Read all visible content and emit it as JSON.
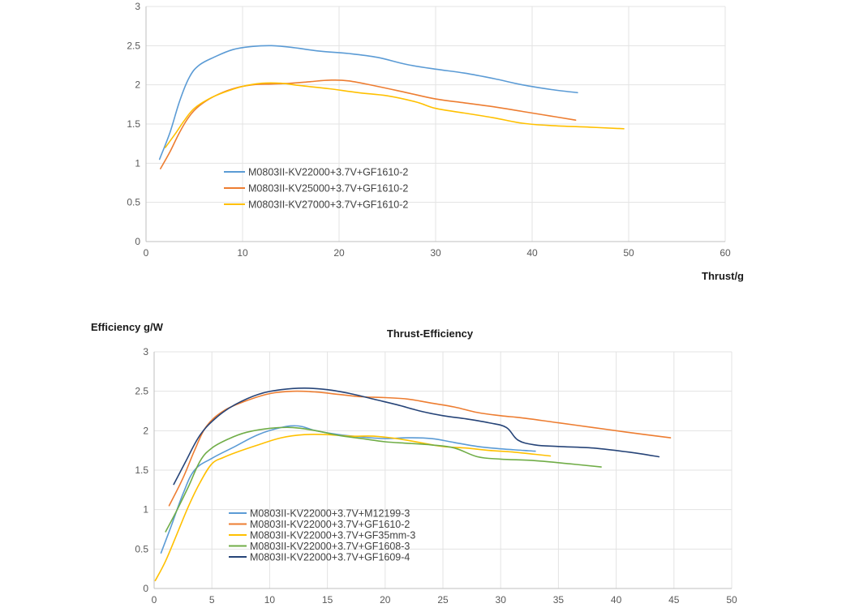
{
  "chart_data": [
    {
      "type": "line",
      "title": "",
      "xlabel": "Thrust/g",
      "ylabel": "",
      "xlim": [
        0,
        60
      ],
      "ylim": [
        0,
        3
      ],
      "xticks": [
        "0",
        "10",
        "20",
        "30",
        "40",
        "50",
        "60"
      ],
      "yticks": [
        "0",
        "0.5",
        "1",
        "1.5",
        "2",
        "2.5",
        "3"
      ],
      "grid": true,
      "legend_position": "left-center",
      "series": [
        {
          "name": "M0803II-KV22000+3.7V+GF1610-2",
          "color": "#5B9BD5",
          "points": [
            [
              1.4,
              1.05
            ],
            [
              2.5,
              1.4
            ],
            [
              3.5,
              1.8
            ],
            [
              4.5,
              2.1
            ],
            [
              5.5,
              2.25
            ],
            [
              7,
              2.35
            ],
            [
              9,
              2.45
            ],
            [
              11,
              2.49
            ],
            [
              13,
              2.5
            ],
            [
              15,
              2.48
            ],
            [
              18,
              2.43
            ],
            [
              21,
              2.4
            ],
            [
              24,
              2.35
            ],
            [
              27,
              2.26
            ],
            [
              30,
              2.2
            ],
            [
              33,
              2.15
            ],
            [
              36,
              2.08
            ],
            [
              39,
              2.0
            ],
            [
              42,
              1.94
            ],
            [
              44.7,
              1.9
            ]
          ]
        },
        {
          "name": "M0803II-KV25000+3.7V+GF1610-2",
          "color": "#ED7D31",
          "points": [
            [
              1.5,
              0.93
            ],
            [
              2.5,
              1.15
            ],
            [
              3.5,
              1.4
            ],
            [
              4.5,
              1.6
            ],
            [
              5.5,
              1.73
            ],
            [
              7,
              1.85
            ],
            [
              9,
              1.95
            ],
            [
              11,
              2.0
            ],
            [
              13,
              2.01
            ],
            [
              15,
              2.02
            ],
            [
              17,
              2.04
            ],
            [
              19,
              2.06
            ],
            [
              21,
              2.05
            ],
            [
              24,
              1.98
            ],
            [
              27,
              1.9
            ],
            [
              30,
              1.82
            ],
            [
              33,
              1.77
            ],
            [
              36,
              1.72
            ],
            [
              39,
              1.66
            ],
            [
              42,
              1.6
            ],
            [
              44.5,
              1.55
            ]
          ]
        },
        {
          "name": "M0803II-KV27000+3.7V+GF1610-2",
          "color": "#FFC000",
          "points": [
            [
              2,
              1.2
            ],
            [
              3,
              1.37
            ],
            [
              4,
              1.55
            ],
            [
              5,
              1.7
            ],
            [
              6.5,
              1.82
            ],
            [
              8,
              1.9
            ],
            [
              10,
              1.98
            ],
            [
              12,
              2.02
            ],
            [
              14,
              2.02
            ],
            [
              16,
              1.99
            ],
            [
              19,
              1.95
            ],
            [
              22,
              1.9
            ],
            [
              25,
              1.86
            ],
            [
              28,
              1.78
            ],
            [
              30,
              1.7
            ],
            [
              33,
              1.64
            ],
            [
              36,
              1.58
            ],
            [
              39,
              1.51
            ],
            [
              42,
              1.48
            ],
            [
              46,
              1.46
            ],
            [
              49.5,
              1.44
            ]
          ]
        }
      ]
    },
    {
      "type": "line",
      "title": "Thrust-Efficiency",
      "xlabel": "",
      "ylabel": "Efficiency g/W",
      "xlim": [
        0,
        50
      ],
      "ylim": [
        0,
        3
      ],
      "xticks": [
        "0",
        "5",
        "10",
        "15",
        "20",
        "25",
        "30",
        "35",
        "40",
        "45",
        "50"
      ],
      "yticks": [
        "0",
        "0.5",
        "1",
        "1.5",
        "2",
        "2.5",
        "3"
      ],
      "grid": true,
      "legend_position": "left-bottom",
      "series": [
        {
          "name": "M0803II-KV22000+3.7V+M12199-3",
          "color": "#5B9BD5",
          "points": [
            [
              0.6,
              0.45
            ],
            [
              1.5,
              0.8
            ],
            [
              2.5,
              1.2
            ],
            [
              3.5,
              1.5
            ],
            [
              5,
              1.65
            ],
            [
              7,
              1.8
            ],
            [
              9,
              1.95
            ],
            [
              11,
              2.04
            ],
            [
              12.5,
              2.06
            ],
            [
              14,
              2.0
            ],
            [
              16,
              1.95
            ],
            [
              18,
              1.92
            ],
            [
              20,
              1.9
            ],
            [
              22,
              1.91
            ],
            [
              24,
              1.9
            ],
            [
              26,
              1.85
            ],
            [
              28,
              1.8
            ],
            [
              30,
              1.77
            ],
            [
              32,
              1.75
            ],
            [
              33,
              1.74
            ]
          ]
        },
        {
          "name": "M0803II-KV22000+3.7V+GF1610-2",
          "color": "#ED7D31",
          "points": [
            [
              1.3,
              1.05
            ],
            [
              2.5,
              1.4
            ],
            [
              3.5,
              1.75
            ],
            [
              4.5,
              2.05
            ],
            [
              6,
              2.25
            ],
            [
              8,
              2.38
            ],
            [
              10,
              2.47
            ],
            [
              12,
              2.5
            ],
            [
              14,
              2.49
            ],
            [
              16,
              2.46
            ],
            [
              18,
              2.43
            ],
            [
              20,
              2.42
            ],
            [
              22,
              2.4
            ],
            [
              24,
              2.35
            ],
            [
              26,
              2.3
            ],
            [
              28,
              2.23
            ],
            [
              30,
              2.19
            ],
            [
              32,
              2.16
            ],
            [
              35,
              2.1
            ],
            [
              38,
              2.04
            ],
            [
              41,
              1.98
            ],
            [
              44.7,
              1.91
            ]
          ]
        },
        {
          "name": "M0803II-KV22000+3.7V+GF35mm-3",
          "color": "#FFC000",
          "points": [
            [
              0.1,
              0.1
            ],
            [
              1,
              0.35
            ],
            [
              2,
              0.7
            ],
            [
              3,
              1.05
            ],
            [
              4,
              1.35
            ],
            [
              5,
              1.58
            ],
            [
              6,
              1.66
            ],
            [
              7,
              1.72
            ],
            [
              9,
              1.82
            ],
            [
              11,
              1.91
            ],
            [
              13,
              1.95
            ],
            [
              15,
              1.95
            ],
            [
              17,
              1.93
            ],
            [
              19,
              1.93
            ],
            [
              21,
              1.9
            ],
            [
              23,
              1.85
            ],
            [
              25,
              1.8
            ],
            [
              27,
              1.78
            ],
            [
              29,
              1.75
            ],
            [
              31,
              1.73
            ],
            [
              33,
              1.7
            ],
            [
              34.3,
              1.68
            ]
          ]
        },
        {
          "name": "M0803II-KV22000+3.7V+GF1608-3",
          "color": "#70AD47",
          "points": [
            [
              1,
              0.72
            ],
            [
              2,
              1.0
            ],
            [
              3,
              1.3
            ],
            [
              4,
              1.62
            ],
            [
              5,
              1.78
            ],
            [
              6.5,
              1.9
            ],
            [
              8,
              1.98
            ],
            [
              10,
              2.03
            ],
            [
              12,
              2.04
            ],
            [
              14,
              2.0
            ],
            [
              16,
              1.94
            ],
            [
              18,
              1.9
            ],
            [
              20,
              1.86
            ],
            [
              22,
              1.84
            ],
            [
              24,
              1.82
            ],
            [
              26,
              1.78
            ],
            [
              28,
              1.67
            ],
            [
              30,
              1.64
            ],
            [
              33,
              1.62
            ],
            [
              36,
              1.58
            ],
            [
              38.7,
              1.54
            ]
          ]
        },
        {
          "name": "M0803II-KV22000+3.7V+GF1609-4",
          "color": "#264478",
          "points": [
            [
              1.7,
              1.32
            ],
            [
              2.7,
              1.6
            ],
            [
              4,
              1.95
            ],
            [
              5.5,
              2.18
            ],
            [
              7,
              2.33
            ],
            [
              9,
              2.46
            ],
            [
              11,
              2.52
            ],
            [
              13,
              2.54
            ],
            [
              15,
              2.52
            ],
            [
              17,
              2.47
            ],
            [
              19,
              2.4
            ],
            [
              21,
              2.33
            ],
            [
              23,
              2.25
            ],
            [
              25,
              2.19
            ],
            [
              27,
              2.15
            ],
            [
              29,
              2.1
            ],
            [
              30.5,
              2.04
            ],
            [
              31.5,
              1.88
            ],
            [
              33,
              1.82
            ],
            [
              35,
              1.8
            ],
            [
              38,
              1.78
            ],
            [
              41,
              1.73
            ],
            [
              43.7,
              1.67
            ]
          ]
        }
      ]
    }
  ]
}
